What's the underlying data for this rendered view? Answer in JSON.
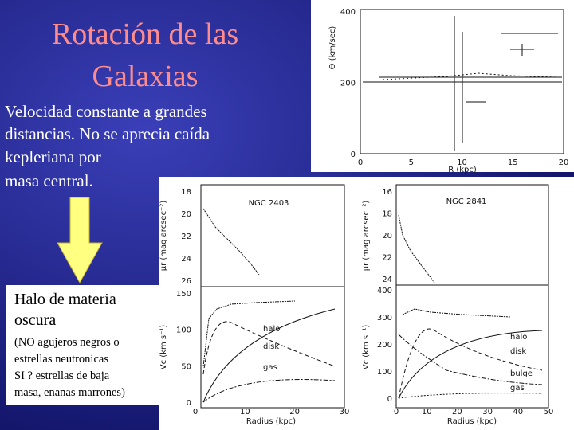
{
  "slide": {
    "title_lines": [
      "Rotación de las",
      "Galaxias"
    ],
    "body_lines": [
      "Velocidad constante a grandes",
      "distancias. No se aprecia caída",
      "kepleriana por",
      "masa central."
    ],
    "halo_lines": [
      "Halo de materia",
      "oscura"
    ],
    "note_lines": [
      "(NO agujeros negros o",
      "estrellas neutronicas",
      "SI ? estrellas de baja",
      "masa, enanas marrones)"
    ]
  },
  "figures": [
    {
      "ylabel": "Θ (km/sec)",
      "yticks": [
        "400",
        "200",
        "0"
      ],
      "xticks": [
        "0",
        "5",
        "10",
        "15",
        "20"
      ],
      "xlabel": "R (kpc)"
    },
    {
      "name": "NGC 2403",
      "top_ylabel": "μr (mag arcsec⁻²)",
      "top_yticks": [
        "18",
        "20",
        "22",
        "24",
        "26"
      ],
      "ylabel": "Vc (km s⁻¹)",
      "yticks": [
        "150",
        "100",
        "50",
        "0"
      ],
      "xticks": [
        "0",
        "10",
        "20",
        "30"
      ],
      "xlabel": "Radius (kpc)",
      "curves": [
        "halo",
        "disk",
        "gas"
      ]
    },
    {
      "name": "NGC 2841",
      "top_ylabel": "μr (mag arcsec⁻²)",
      "top_yticks": [
        "16",
        "18",
        "20",
        "22",
        "24"
      ],
      "ylabel": "Vc (km s⁻¹)",
      "yticks": [
        "400",
        "300",
        "200",
        "100",
        "0"
      ],
      "xticks": [
        "0",
        "10",
        "20",
        "30",
        "40",
        "50"
      ],
      "xlabel": "Radius (kpc)",
      "curves": [
        "halo",
        "disk",
        "bulge",
        "gas"
      ]
    }
  ]
}
